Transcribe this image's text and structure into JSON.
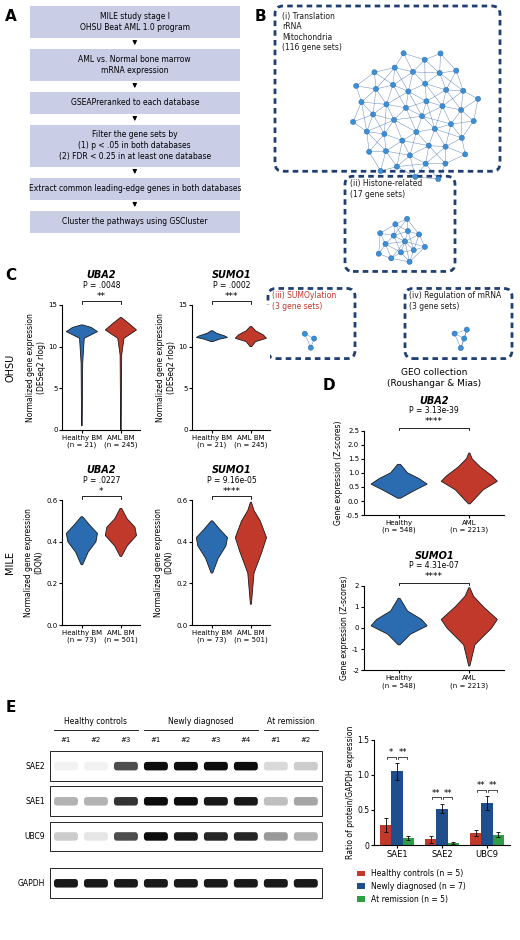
{
  "panel_labels": [
    "A",
    "B",
    "C",
    "D",
    "E"
  ],
  "flowchart": {
    "steps": [
      "MILE study stage I\nOHSU Beat AML 1.0 program",
      "AML vs. Normal bone marrow\nmRNA expression",
      "GSEAPreranked to each database",
      "Filter the gene sets by\n(1) p < .05 in both databases\n(2) FDR < 0.25 in at least one database",
      "Extract common leading-edge genes in both databases",
      "Cluster the pathways using GSCluster"
    ]
  },
  "network": {
    "clusters": [
      {
        "label": "(i) Translation\nrRNA\nMitochondria\n(116 gene sets)",
        "color": "#1a1a1a"
      },
      {
        "label": "(ii) Histone-related\n(17 gene sets)",
        "color": "#1a1a1a"
      },
      {
        "label": "(iii) SUMOylation\n(3 gene sets)",
        "color": "#c0392b"
      },
      {
        "label": "(iv) Regulation of mRNA\n(3 gene sets)",
        "color": "#1a1a1a"
      }
    ]
  },
  "panel_d_title": "GEO collection\n(Roushangar & Mias)",
  "chart_data": [
    {
      "type": "violin",
      "panel": "C",
      "row_label": "OHSU",
      "title": "UBA2",
      "p_label": "P = .0048",
      "significance": "**",
      "ylabel": "Normalized gene expression\n(DESeq2 rlog)",
      "ylim": [
        0,
        15
      ],
      "yticks": [
        0,
        5,
        10,
        15
      ],
      "categories": [
        "Healthy BM\n(n = 21)",
        "AML BM\n(n = 245)"
      ],
      "colors": [
        "#2b6cb0",
        "#c0392b"
      ],
      "profiles": [
        {
          "y": [
            0.5,
            3,
            8,
            11,
            11.8,
            12.3,
            12.6
          ],
          "widths": [
            0.02,
            0.03,
            0.05,
            0.15,
            1.0,
            0.6,
            0.05
          ]
        },
        {
          "y": [
            0,
            4,
            9,
            11,
            12,
            12.8,
            13.5
          ],
          "widths": [
            0.02,
            0.03,
            0.05,
            0.2,
            1.0,
            0.5,
            0.03
          ]
        }
      ]
    },
    {
      "type": "violin",
      "panel": "C",
      "title": "SUMO1",
      "p_label": "P = .0002",
      "significance": "***",
      "ylabel": "Normalized gene expression\n(DESeq2 rlog)",
      "ylim": [
        0,
        15
      ],
      "yticks": [
        0,
        5,
        10,
        15
      ],
      "categories": [
        "Healthy BM\n(n = 21)",
        "AML BM\n(n = 245)"
      ],
      "colors": [
        "#2b6cb0",
        "#c0392b"
      ],
      "profiles": [
        {
          "y": [
            10.6,
            10.9,
            11.1,
            11.3,
            11.6,
            11.9
          ],
          "widths": [
            0.05,
            0.5,
            1.0,
            0.8,
            0.3,
            0.05
          ]
        },
        {
          "y": [
            10,
            10.6,
            11,
            11.4,
            11.9,
            12.4
          ],
          "widths": [
            0.05,
            0.3,
            1.0,
            0.8,
            0.3,
            0.05
          ]
        }
      ]
    },
    {
      "type": "violin",
      "panel": "C",
      "row_label": "MILE",
      "title": "UBA2",
      "p_label": "P = .0227",
      "significance": "*",
      "ylabel": "Normalized gene expression\n(DQN)",
      "ylim": [
        0.0,
        0.6
      ],
      "yticks": [
        0.0,
        0.2,
        0.4,
        0.6
      ],
      "categories": [
        "Healthy BM\n(n = 73)",
        "AML BM\n(n = 501)"
      ],
      "colors": [
        "#2b6cb0",
        "#c0392b"
      ],
      "profiles": [
        {
          "y": [
            0.29,
            0.35,
            0.4,
            0.44,
            0.48,
            0.52
          ],
          "widths": [
            0.05,
            0.4,
            0.9,
            1.0,
            0.5,
            0.05
          ]
        },
        {
          "y": [
            0.33,
            0.38,
            0.43,
            0.47,
            0.51,
            0.56
          ],
          "widths": [
            0.05,
            0.4,
            1.0,
            0.9,
            0.4,
            0.05
          ]
        }
      ]
    },
    {
      "type": "violin",
      "panel": "C",
      "title": "SUMO1",
      "p_label": "P = 9.16e-05",
      "significance": "****",
      "ylabel": "Normalized gene expression\n(DQN)",
      "ylim": [
        0.0,
        0.6
      ],
      "yticks": [
        0.0,
        0.2,
        0.4,
        0.6
      ],
      "categories": [
        "Healthy BM\n(n = 73)",
        "AML BM\n(n = 501)"
      ],
      "colors": [
        "#2b6cb0",
        "#c0392b"
      ],
      "profiles": [
        {
          "y": [
            0.25,
            0.32,
            0.38,
            0.42,
            0.46,
            0.5
          ],
          "widths": [
            0.05,
            0.4,
            0.9,
            1.0,
            0.5,
            0.05
          ]
        },
        {
          "y": [
            0.1,
            0.25,
            0.35,
            0.42,
            0.5,
            0.55,
            0.59
          ],
          "widths": [
            0.03,
            0.2,
            0.7,
            1.0,
            0.6,
            0.2,
            0.03
          ]
        }
      ]
    },
    {
      "type": "violin",
      "panel": "D",
      "title": "UBA2",
      "p_label": "P = 3.13e-39",
      "significance": "****",
      "ylabel": "Gene expression (Z-scores)",
      "ylim": [
        -0.5,
        2.5
      ],
      "yticks": [
        -0.5,
        0.0,
        0.5,
        1.0,
        1.5,
        2.0,
        2.5
      ],
      "categories": [
        "Healthy\n(n = 548)",
        "AML\n(n = 2213)"
      ],
      "colors": [
        "#2b6cb0",
        "#c0392b"
      ],
      "profiles": [
        {
          "y": [
            0.1,
            0.4,
            0.6,
            0.8,
            1.0,
            1.3
          ],
          "widths": [
            0.05,
            0.6,
            1.0,
            0.7,
            0.3,
            0.05
          ]
        },
        {
          "y": [
            -0.1,
            0.4,
            0.7,
            0.9,
            1.2,
            1.5,
            1.7
          ],
          "widths": [
            0.03,
            0.5,
            1.0,
            0.8,
            0.4,
            0.1,
            0.02
          ]
        }
      ]
    },
    {
      "type": "violin",
      "panel": "D",
      "title": "SUMO1",
      "p_label": "P = 4.31e-07",
      "significance": "****",
      "ylabel": "Gene expression (Z-scores)",
      "ylim": [
        -2,
        2
      ],
      "yticks": [
        -2,
        -1,
        0,
        1,
        2
      ],
      "categories": [
        "Healthy\n(n = 548)",
        "AML\n(n = 2213)"
      ],
      "colors": [
        "#2b6cb0",
        "#c0392b"
      ],
      "profiles": [
        {
          "y": [
            -0.8,
            -0.3,
            0.1,
            0.4,
            0.8,
            1.4
          ],
          "widths": [
            0.03,
            0.4,
            1.0,
            0.8,
            0.3,
            0.03
          ]
        },
        {
          "y": [
            -1.8,
            -0.8,
            0,
            0.4,
            1,
            1.5,
            1.9
          ],
          "widths": [
            0.02,
            0.2,
            0.8,
            1.0,
            0.5,
            0.15,
            0.02
          ]
        }
      ]
    },
    {
      "type": "bar",
      "panel": "E",
      "ylabel": "Ratio of protein/GAPDH expression",
      "categories": [
        "SAE1",
        "SAE2",
        "UBC9"
      ],
      "ylim": [
        0,
        1.5
      ],
      "yticks": [
        0,
        0.5,
        1.0,
        1.5
      ],
      "legend": "upper left",
      "series": [
        {
          "name": "Healthy controls (n = 5)",
          "color": "#c0392b",
          "values": [
            0.28,
            0.08,
            0.17
          ],
          "errors": [
            0.1,
            0.05,
            0.04
          ]
        },
        {
          "name": "Newly diagnosed (n = 7)",
          "color": "#1f4e8c",
          "values": [
            1.05,
            0.52,
            0.6
          ],
          "errors": [
            0.12,
            0.07,
            0.1
          ]
        },
        {
          "name": "At remission (n = 5)",
          "color": "#2e9e44",
          "values": [
            0.1,
            0.03,
            0.15
          ],
          "errors": [
            0.03,
            0.01,
            0.03
          ]
        }
      ],
      "significance": [
        {
          "category": 0,
          "from": 0,
          "to": 1,
          "label": "*"
        },
        {
          "category": 0,
          "from": 1,
          "to": 2,
          "label": "**"
        },
        {
          "category": 1,
          "from": 0,
          "to": 1,
          "label": "**"
        },
        {
          "category": 1,
          "from": 1,
          "to": 2,
          "label": "**"
        },
        {
          "category": 2,
          "from": 0,
          "to": 1,
          "label": "**"
        },
        {
          "category": 2,
          "from": 1,
          "to": 2,
          "label": "**"
        }
      ]
    }
  ],
  "blot": {
    "groups": [
      {
        "name": "Healthy controls",
        "lanes": [
          "#1",
          "#2",
          "#3"
        ]
      },
      {
        "name": "Newly diagnosed",
        "lanes": [
          "#1",
          "#2",
          "#3",
          "#4"
        ]
      },
      {
        "name": "At remission",
        "lanes": [
          "#1",
          "#2"
        ]
      }
    ],
    "rows": [
      {
        "name": "SAE2",
        "intensity": [
          0.05,
          0.05,
          0.7,
          0.95,
          0.95,
          0.95,
          0.95,
          0.15,
          0.2
        ]
      },
      {
        "name": "SAE1",
        "intensity": [
          0.3,
          0.3,
          0.8,
          0.95,
          0.95,
          0.9,
          0.9,
          0.25,
          0.35
        ]
      },
      {
        "name": "UBC9",
        "intensity": [
          0.2,
          0.1,
          0.7,
          0.95,
          0.9,
          0.85,
          0.85,
          0.4,
          0.3
        ]
      },
      {
        "name": "GAPDH",
        "intensity": [
          0.9,
          0.9,
          0.9,
          0.9,
          0.9,
          0.9,
          0.9,
          0.9,
          0.9
        ]
      }
    ]
  }
}
